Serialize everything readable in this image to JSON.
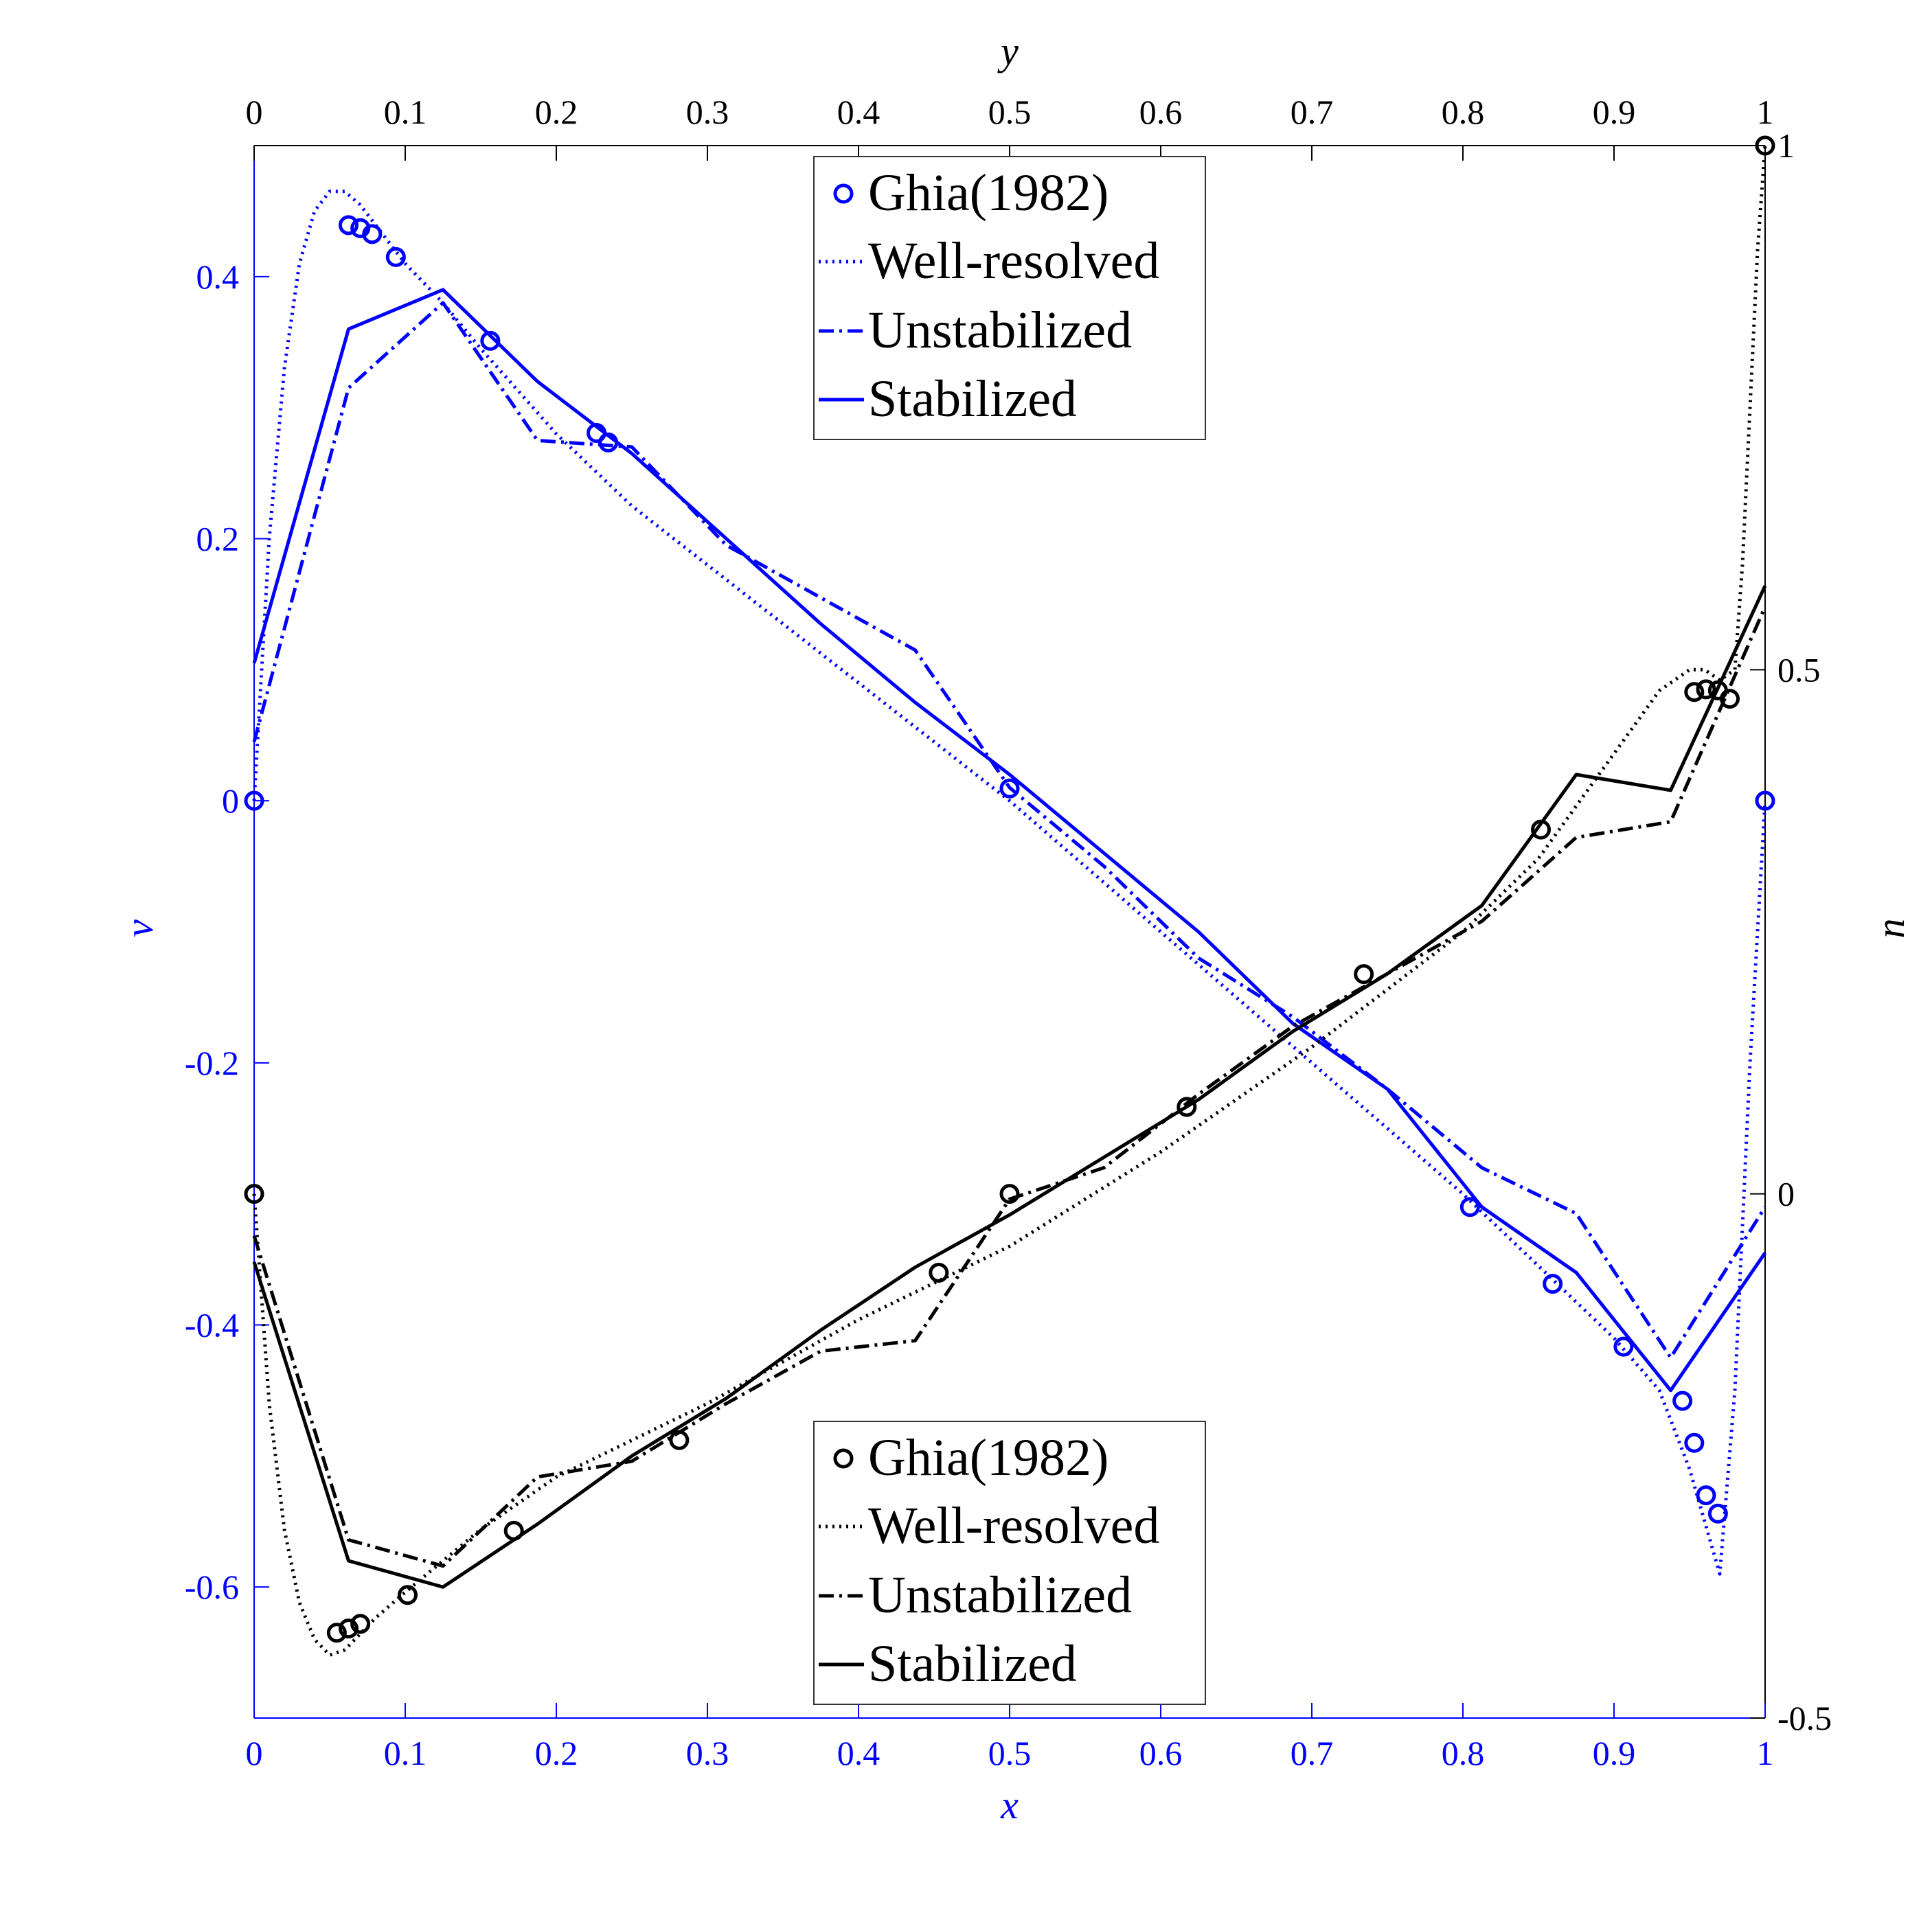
{
  "chart_data": {
    "type": "line",
    "colors": {
      "v_series": "#0000ff",
      "u_series": "#000000"
    },
    "axes": {
      "bottom": {
        "label": "x",
        "range": [
          0,
          1
        ],
        "ticks": [
          "0",
          "0.1",
          "0.2",
          "0.3",
          "0.4",
          "0.5",
          "0.6",
          "0.7",
          "0.8",
          "0.9",
          "1"
        ],
        "color": "#0000ff"
      },
      "top": {
        "label": "y",
        "range": [
          0,
          1
        ],
        "ticks": [
          "0",
          "0.1",
          "0.2",
          "0.3",
          "0.4",
          "0.5",
          "0.6",
          "0.7",
          "0.8",
          "0.9",
          "1"
        ],
        "color": "#000000"
      },
      "left": {
        "label": "v",
        "range": [
          -0.7,
          0.5
        ],
        "ticks": [
          "0.4",
          "0.2",
          "0",
          "-0.2",
          "-0.4",
          "-0.6"
        ],
        "tick_values": [
          0.4,
          0.2,
          0,
          -0.2,
          -0.4,
          -0.6
        ],
        "color": "#0000ff"
      },
      "right": {
        "label": "u",
        "range": [
          -0.5,
          1
        ],
        "ticks": [
          "1",
          "0.5",
          "0",
          "-0.5"
        ],
        "tick_values": [
          1,
          0.5,
          0,
          -0.5
        ],
        "color": "#000000"
      }
    },
    "legends": [
      {
        "placement": "top-center",
        "color": "#0000ff",
        "entries": [
          "Ghia(1982)",
          "Well-resolved",
          "Unstabilized",
          "Stabilized"
        ]
      },
      {
        "placement": "bottom-center",
        "color": "#000000",
        "entries": [
          "Ghia(1982)",
          "Well-resolved",
          "Unstabilized",
          "Stabilized"
        ]
      }
    ],
    "series": [
      {
        "group": "v",
        "name": "Ghia(1982)",
        "style": "markers",
        "axis": "x-left",
        "x": [
          0,
          0.0625,
          0.0703,
          0.0781,
          0.0938,
          0.1563,
          0.2266,
          0.2344,
          0.5,
          0.8047,
          0.8594,
          0.9063,
          0.9453,
          0.9531,
          0.9609,
          0.9688,
          1
        ],
        "y": [
          0,
          0.4393,
          0.437,
          0.4325,
          0.4149,
          0.351,
          0.2807,
          0.2734,
          0.0094,
          -0.31,
          -0.3686,
          -0.4166,
          -0.458,
          -0.49,
          -0.53,
          -0.544,
          0
        ]
      },
      {
        "group": "v",
        "name": "Well-resolved",
        "style": "dotted",
        "axis": "x-left",
        "x": [
          0,
          0.01,
          0.02,
          0.03,
          0.04,
          0.05,
          0.06,
          0.07,
          0.08,
          0.1,
          0.125,
          0.15,
          0.2,
          0.25,
          0.3,
          0.35,
          0.4,
          0.45,
          0.5,
          0.55,
          0.6,
          0.65,
          0.7,
          0.75,
          0.8,
          0.85,
          0.9,
          0.93,
          0.95,
          0.96,
          0.97,
          0.98,
          0.99,
          1
        ],
        "y": [
          0,
          0.2,
          0.33,
          0.41,
          0.45,
          0.465,
          0.465,
          0.455,
          0.44,
          0.41,
          0.38,
          0.345,
          0.28,
          0.225,
          0.18,
          0.135,
          0.09,
          0.045,
          0.0,
          -0.05,
          -0.1,
          -0.15,
          -0.2,
          -0.25,
          -0.3,
          -0.355,
          -0.41,
          -0.45,
          -0.51,
          -0.55,
          -0.59,
          -0.45,
          -0.2,
          0
        ]
      },
      {
        "group": "v",
        "name": "Unstabilized",
        "style": "dashdot",
        "axis": "x-left",
        "x": [
          0,
          0.0625,
          0.125,
          0.1875,
          0.25,
          0.3125,
          0.375,
          0.4375,
          0.5,
          0.5625,
          0.625,
          0.6875,
          0.75,
          0.8125,
          0.875,
          0.9375,
          1
        ],
        "y": [
          0.045,
          0.315,
          0.38,
          0.275,
          0.27,
          0.195,
          0.155,
          0.115,
          0.01,
          -0.05,
          -0.12,
          -0.165,
          -0.22,
          -0.28,
          -0.315,
          -0.425,
          -0.31
        ]
      },
      {
        "group": "v",
        "name": "Stabilized",
        "style": "solid",
        "axis": "x-left",
        "x": [
          0,
          0.0625,
          0.125,
          0.1875,
          0.25,
          0.3125,
          0.375,
          0.4375,
          0.5,
          0.5625,
          0.625,
          0.6875,
          0.75,
          0.8125,
          0.875,
          0.9375,
          1
        ],
        "y": [
          0.105,
          0.36,
          0.39,
          0.32,
          0.265,
          0.2,
          0.135,
          0.075,
          0.02,
          -0.04,
          -0.1,
          -0.17,
          -0.22,
          -0.31,
          -0.36,
          -0.45,
          -0.345
        ]
      },
      {
        "group": "u",
        "name": "Ghia(1982)",
        "style": "markers",
        "axis": "y-right",
        "x": [
          0,
          0.0547,
          0.0625,
          0.0703,
          0.1016,
          0.1719,
          0.2813,
          0.4531,
          0.5,
          0.6172,
          0.7344,
          0.8516,
          0.9531,
          0.9609,
          0.9688,
          0.9766,
          1
        ],
        "y": [
          0,
          -0.4186,
          -0.4146,
          -0.4102,
          -0.3826,
          -0.3214,
          -0.2349,
          -0.0752,
          0.0,
          0.083,
          0.2096,
          0.3475,
          0.4788,
          0.4813,
          0.4803,
          0.4723,
          1
        ]
      },
      {
        "group": "u",
        "name": "Well-resolved",
        "style": "dotted",
        "axis": "y-right",
        "x": [
          0,
          0.01,
          0.02,
          0.03,
          0.04,
          0.05,
          0.06,
          0.07,
          0.08,
          0.1,
          0.15,
          0.2,
          0.3,
          0.4,
          0.5,
          0.6,
          0.7,
          0.8,
          0.85,
          0.9,
          0.93,
          0.95,
          0.96,
          0.97,
          0.98,
          0.985,
          0.99,
          0.995,
          1
        ],
        "y": [
          0,
          -0.2,
          -0.32,
          -0.39,
          -0.425,
          -0.44,
          -0.435,
          -0.42,
          -0.405,
          -0.38,
          -0.32,
          -0.27,
          -0.2,
          -0.12,
          -0.05,
          0.04,
          0.14,
          0.25,
          0.32,
          0.42,
          0.48,
          0.5,
          0.5,
          0.49,
          0.5,
          0.6,
          0.75,
          0.9,
          1
        ]
      },
      {
        "group": "u",
        "name": "Unstabilized",
        "style": "dashdot",
        "axis": "y-right",
        "x": [
          0,
          0.0625,
          0.125,
          0.1875,
          0.25,
          0.3125,
          0.375,
          0.4375,
          0.5,
          0.5625,
          0.625,
          0.6875,
          0.75,
          0.8125,
          0.875,
          0.9375,
          1
        ],
        "y": [
          -0.04,
          -0.33,
          -0.355,
          -0.27,
          -0.255,
          -0.2,
          -0.15,
          -0.14,
          -0.005,
          0.025,
          0.095,
          0.16,
          0.21,
          0.26,
          0.34,
          0.355,
          0.56
        ]
      },
      {
        "group": "u",
        "name": "Stabilized",
        "style": "solid",
        "axis": "y-right",
        "x": [
          0,
          0.0625,
          0.125,
          0.1875,
          0.25,
          0.3125,
          0.375,
          0.4375,
          0.5,
          0.5625,
          0.625,
          0.6875,
          0.75,
          0.8125,
          0.875,
          0.9375,
          1
        ],
        "y": [
          -0.065,
          -0.35,
          -0.375,
          -0.315,
          -0.25,
          -0.195,
          -0.13,
          -0.07,
          -0.02,
          0.035,
          0.09,
          0.155,
          0.21,
          0.275,
          0.4,
          0.385,
          0.58
        ]
      }
    ]
  }
}
